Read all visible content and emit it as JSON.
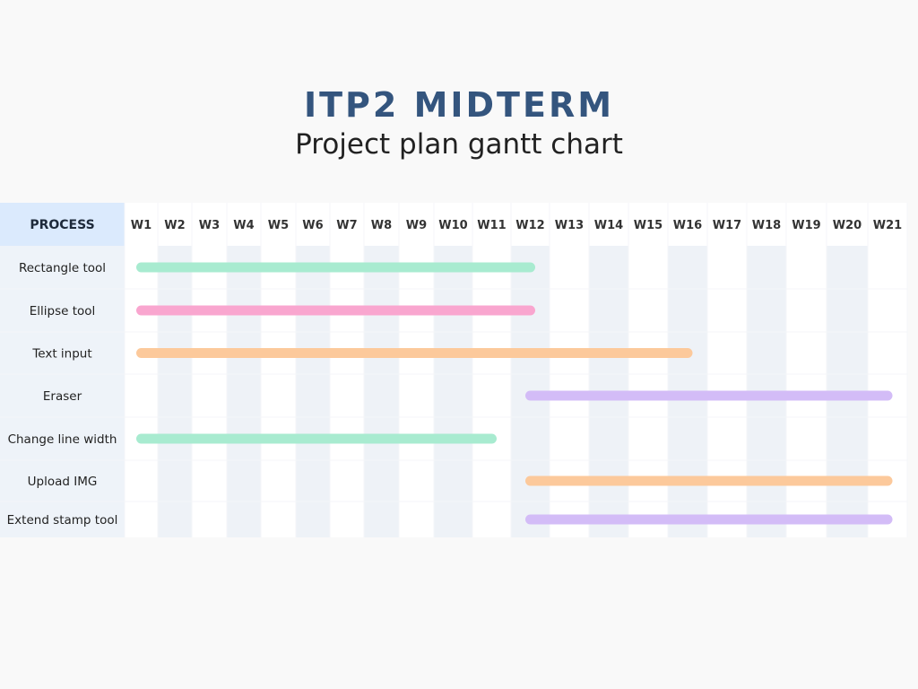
{
  "header": {
    "title": "ITP2 MIDTERM",
    "subtitle": "Project plan gantt chart"
  },
  "chart_data": {
    "type": "gantt",
    "row_header": "PROCESS",
    "weeks": [
      "W1",
      "W2",
      "W3",
      "W4",
      "W5",
      "W6",
      "W7",
      "W8",
      "W9",
      "W10",
      "W11",
      "W12",
      "W13",
      "W14",
      "W15",
      "W16",
      "W17",
      "W18",
      "W19",
      "W20",
      "W21"
    ],
    "tasks": [
      {
        "name": "Rectangle tool",
        "start_week": 1,
        "end_week": 12,
        "color": "#a8ebd0"
      },
      {
        "name": "Ellipse tool",
        "start_week": 1,
        "end_week": 12,
        "color": "#f9a6cf"
      },
      {
        "name": "Text input",
        "start_week": 1,
        "end_week": 16,
        "color": "#fcc99b"
      },
      {
        "name": "Eraser",
        "start_week": 12,
        "end_week": 21,
        "color": "#d3bcf7"
      },
      {
        "name": "Change line width",
        "start_week": 1,
        "end_week": 11,
        "color": "#a8ebd0"
      },
      {
        "name": "Upload IMG",
        "start_week": 12,
        "end_week": 21,
        "color": "#fcc99b"
      },
      {
        "name": "Extend stamp tool",
        "start_week": 12,
        "end_week": 21,
        "color": "#d3bcf7"
      }
    ],
    "colors": {
      "header_bg": "#dbeafd",
      "label_bg": "#eef3f9",
      "stripe_bg": "#eef2f7",
      "cell_bg": "#ffffff"
    }
  }
}
